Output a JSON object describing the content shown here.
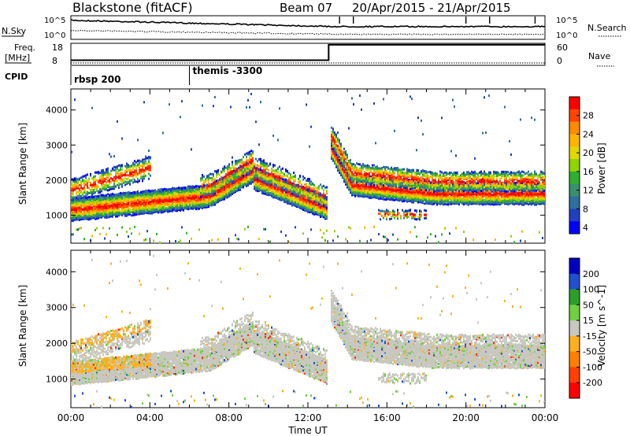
{
  "header": {
    "title": "Blackstone (fitACF)",
    "beam": "Beam 07",
    "date_range": "20/Apr/2015 - 21/Apr/2015"
  },
  "summary": {
    "nsky_label": "N.Sky",
    "nsky_ticks": [
      "10^5",
      "10^0"
    ],
    "nsearch_label": "N.Search",
    "nsearch_ticks": [
      "10^5",
      "10^0"
    ],
    "freq_label": "Freq.",
    "freq_unit": "[MHz]",
    "freq_ticks": [
      "18",
      "8"
    ],
    "nave_label": "Nave",
    "nave_ticks": [
      "60",
      "0"
    ],
    "cpid_label": "CPID",
    "cpid_segments": [
      {
        "label": "rbsp 200",
        "start_hour": 0.0
      },
      {
        "label": "themis -3300",
        "start_hour": 6.0
      }
    ],
    "freq_step": {
      "before_mhz": 10.5,
      "after_mhz": 17.5,
      "switch_hour": 13.05
    }
  },
  "chart_data": [
    {
      "type": "heatmap",
      "name": "power-panel",
      "ylabel": "Slant Range [km]",
      "yticks": [
        1000,
        2000,
        3000,
        4000
      ],
      "ylim": [
        200,
        4600
      ],
      "xlim_hours": [
        0,
        24
      ],
      "colorbar_label": "Power [dB]",
      "colorbar_ticks": [
        "28",
        "24",
        "20",
        "16",
        "12",
        "8",
        "4"
      ],
      "colorbar_colors": [
        "#ff0000",
        "#ff4500",
        "#ff8c00",
        "#ffb400",
        "#e0d800",
        "#8fd400",
        "#2fb02f",
        "#3a8f6e",
        "#2e6f9e",
        "#2040c0",
        "#0000ff"
      ],
      "bands": [
        {
          "from_h": 0.0,
          "to_h": 13.0,
          "ranges_km": [
            [
              0.0,
              1200
            ],
            [
              2.0,
              1320
            ],
            [
              3.5,
              1480
            ],
            [
              5.5,
              1560
            ],
            [
              7.0,
              1700
            ],
            [
              8.5,
              2050
            ],
            [
              9.5,
              2150
            ],
            [
              10.5,
              1950
            ],
            [
              12.0,
              1450
            ],
            [
              13.0,
              1300
            ]
          ],
          "width_km": 380
        },
        {
          "from_h": 0.0,
          "to_h": 3.5,
          "ranges_km": [
            [
              0.0,
              1750
            ],
            [
              1.5,
              1900
            ],
            [
              3.5,
              2300
            ]
          ],
          "width_km": 360
        },
        {
          "from_h": 13.0,
          "to_h": 24.0,
          "ranges_km": [
            [
              13.0,
              3100
            ],
            [
              13.8,
              2200
            ],
            [
              15.0,
              1800
            ],
            [
              17.0,
              1650
            ],
            [
              20.0,
              1650
            ],
            [
              24.0,
              1700
            ]
          ],
          "width_km": 420
        }
      ]
    },
    {
      "type": "heatmap",
      "name": "velocity-panel",
      "ylabel": "Slant Range [km]",
      "yticks": [
        1000,
        2000,
        3000,
        4000
      ],
      "ylim": [
        200,
        4600
      ],
      "xlim_hours": [
        0,
        24
      ],
      "colorbar_label": "Velocity [m s^-1]",
      "colorbar_ticks": [
        "200",
        "100",
        "50",
        "15",
        "-15",
        "-50",
        "-100",
        "-200"
      ],
      "colorbar_colors": [
        "#0000c0",
        "#2050d0",
        "#2aa02a",
        "#70d040",
        "#c8c8c0",
        "#ffb020",
        "#ff8000",
        "#ff4000",
        "#ff0000"
      ]
    }
  ],
  "xaxis": {
    "label": "Time UT",
    "ticks": [
      "00:00",
      "04:00",
      "08:00",
      "12:00",
      "16:00",
      "20:00",
      "00:00"
    ]
  }
}
